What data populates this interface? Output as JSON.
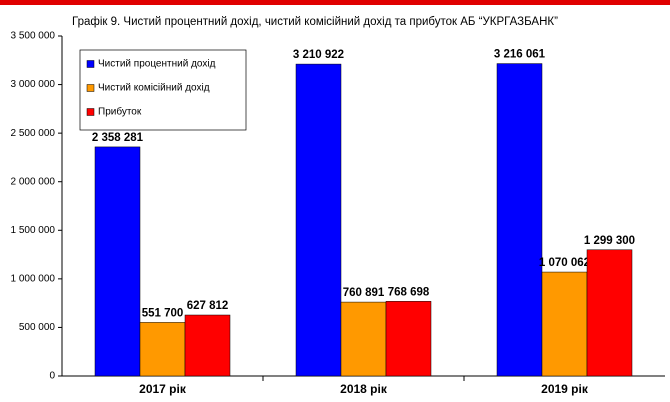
{
  "chart_data": {
    "type": "bar",
    "title": "Графік 9. Чистий процентний дохід, чистий комісійний дохід та прибуток АБ “УКРГАЗБАНК”",
    "categories": [
      "2017 рік",
      "2018 рік",
      "2019 рік"
    ],
    "series": [
      {
        "name": "Чистий процентний дохід",
        "color": "#0000ff",
        "values": [
          2358281,
          3210922,
          3216061
        ],
        "value_labels": [
          "2 358 281",
          "3 210 922",
          "3 216 061"
        ]
      },
      {
        "name": "Чистий комісійний дохід",
        "color": "#ff9900",
        "values": [
          551700,
          760891,
          1070062
        ],
        "value_labels": [
          "551 700",
          "760 891",
          "1 070 062"
        ]
      },
      {
        "name": "Прибуток",
        "color": "#ff0000",
        "values": [
          627812,
          768698,
          1299300
        ],
        "value_labels": [
          "627 812",
          "768 698",
          "1 299 300"
        ]
      }
    ],
    "ylim": [
      0,
      3500000
    ],
    "yticks": [
      0,
      {
        "value": 500000,
        "label": "500 000"
      },
      {
        "value": 1000000,
        "label": "1 000 000"
      },
      {
        "value": 1500000,
        "label": "1 500 000"
      },
      {
        "value": 2000000,
        "label": "2 000 000"
      },
      {
        "value": 2500000,
        "label": "2 500 000"
      },
      {
        "value": 3000000,
        "label": "3 000 000"
      },
      {
        "value": 3500000,
        "label": "3 500 000"
      }
    ],
    "grid": false,
    "legend": "upper left"
  }
}
